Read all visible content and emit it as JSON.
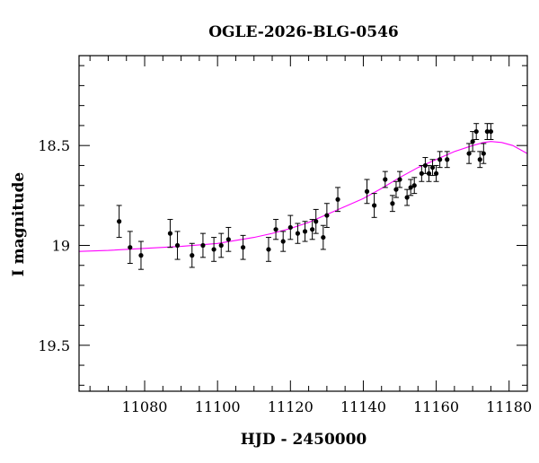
{
  "chart_data": {
    "type": "scatter",
    "title": "OGLE-2026-BLG-0546",
    "xlabel": "HJD - 2450000",
    "ylabel": "I magnitude",
    "xlim": [
      11062,
      11185
    ],
    "ylim": [
      19.73,
      18.05
    ],
    "y_inverted": true,
    "grid": false,
    "x_ticks": [
      11080,
      11100,
      11120,
      11140,
      11160,
      11180
    ],
    "x_tick_labels": [
      "11080",
      "11100",
      "11120",
      "11140",
      "11160",
      "11180"
    ],
    "y_ticks": [
      18.5,
      19,
      19.5
    ],
    "y_tick_labels": [
      "18.5",
      "19",
      "19.5"
    ],
    "x_minor_step": 5,
    "y_minor_step": 0.1,
    "colors": {
      "points": "#000000",
      "error_bars": "#000000",
      "model_curve": "#ff00ff",
      "frame": "#000000",
      "background": "#ffffff"
    },
    "series": [
      {
        "kind": "observations",
        "x": [
          11073,
          11076,
          11079,
          11087,
          11089,
          11093,
          11096,
          11099,
          11101,
          11103,
          11107,
          11114,
          11116,
          11118,
          11120,
          11122,
          11124,
          11126,
          11127,
          11129,
          11130,
          11133,
          11141,
          11143,
          11146,
          11148,
          11149,
          11150,
          11152,
          11153,
          11154,
          11156,
          11157,
          11158,
          11159,
          11160,
          11161,
          11163,
          11169,
          11170,
          11171,
          11172,
          11173,
          11174,
          11175
        ],
        "y": [
          18.88,
          19.01,
          19.05,
          18.94,
          19.0,
          19.05,
          19.0,
          19.02,
          19.0,
          18.97,
          19.01,
          19.02,
          18.92,
          18.98,
          18.91,
          18.94,
          18.93,
          18.92,
          18.88,
          18.96,
          18.85,
          18.77,
          18.73,
          18.8,
          18.67,
          18.79,
          18.72,
          18.67,
          18.76,
          18.71,
          18.7,
          18.64,
          18.6,
          18.64,
          18.61,
          18.64,
          18.57,
          18.57,
          18.54,
          18.48,
          18.43,
          18.57,
          18.54,
          18.43,
          18.43
        ],
        "y_err": [
          0.08,
          0.08,
          0.07,
          0.07,
          0.07,
          0.06,
          0.06,
          0.06,
          0.06,
          0.06,
          0.06,
          0.06,
          0.05,
          0.05,
          0.06,
          0.05,
          0.05,
          0.05,
          0.06,
          0.06,
          0.06,
          0.06,
          0.06,
          0.06,
          0.04,
          0.04,
          0.04,
          0.04,
          0.04,
          0.04,
          0.04,
          0.04,
          0.04,
          0.04,
          0.04,
          0.04,
          0.04,
          0.04,
          0.05,
          0.05,
          0.04,
          0.04,
          0.05,
          0.04,
          0.04
        ]
      },
      {
        "kind": "model",
        "x": [
          11062,
          11070,
          11080,
          11090,
          11100,
          11105,
          11110,
          11115,
          11120,
          11125,
          11130,
          11135,
          11140,
          11145,
          11150,
          11155,
          11160,
          11165,
          11170,
          11173,
          11175,
          11178,
          11181,
          11185
        ],
        "y": [
          19.03,
          19.025,
          19.015,
          19.005,
          18.99,
          18.975,
          18.96,
          18.94,
          18.915,
          18.885,
          18.845,
          18.805,
          18.765,
          18.715,
          18.66,
          18.61,
          18.57,
          18.53,
          18.5,
          18.485,
          18.48,
          18.485,
          18.5,
          18.54
        ]
      }
    ]
  }
}
